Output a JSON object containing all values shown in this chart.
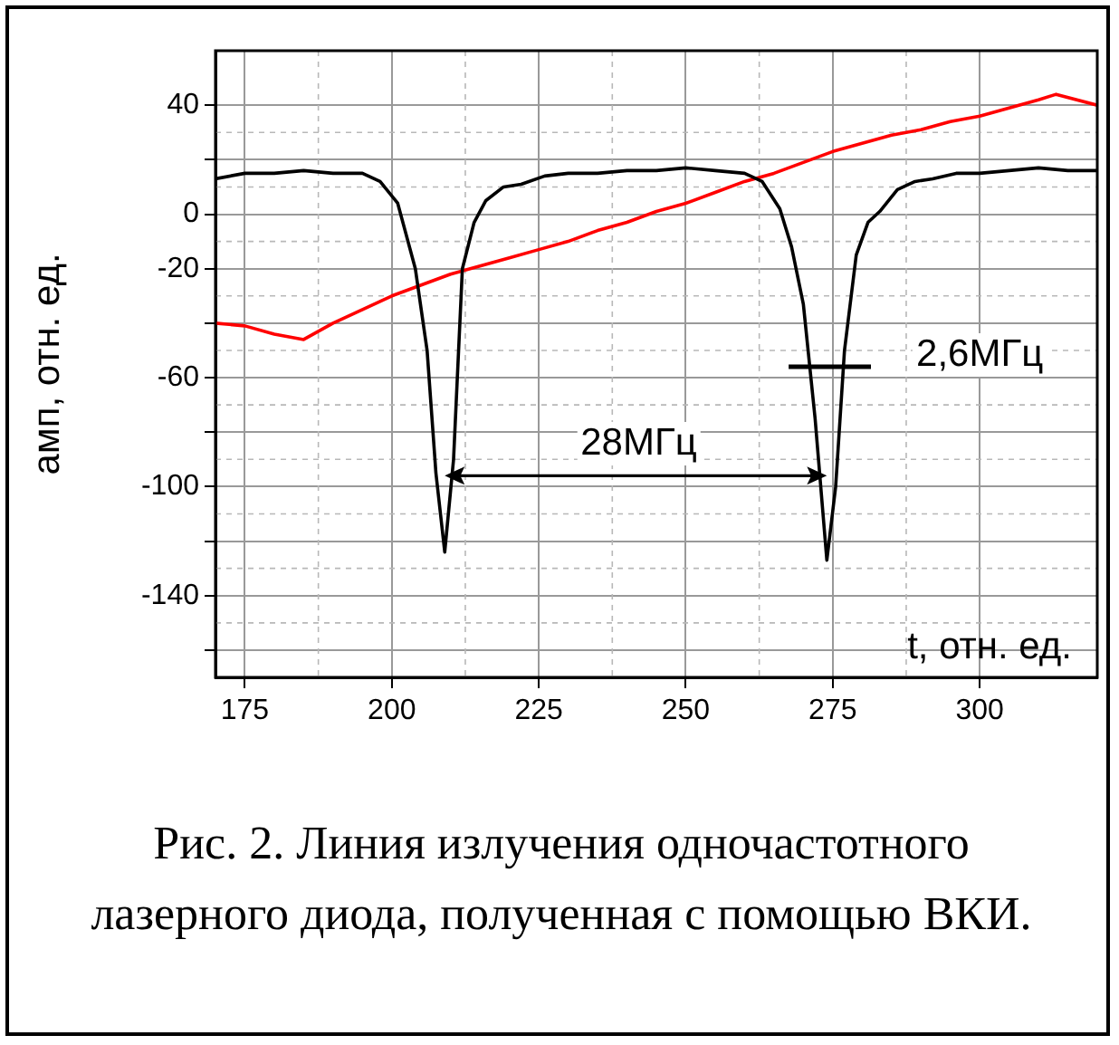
{
  "chart_data": {
    "type": "line",
    "xlabel": "t, отн. ед.",
    "ylabel": "амп, отн. ед.",
    "xlim": [
      170,
      320
    ],
    "xticks": [
      175,
      200,
      225,
      250,
      275,
      300
    ],
    "ylim": [
      -170,
      60
    ],
    "yticks": [
      {
        "value": -160,
        "label": null
      },
      -140,
      {
        "value": -120,
        "label": null
      },
      -100,
      {
        "value": -80,
        "label": null
      },
      -60,
      {
        "value": -40,
        "label": null
      },
      -20,
      0,
      {
        "value": 20,
        "label": null
      },
      40
    ],
    "grid": true,
    "legend": false,
    "marker": "none",
    "line_style": "solid",
    "series": [
      {
        "color": "#000000",
        "x": [
          170,
          175,
          180,
          185,
          190,
          195,
          198,
          201,
          204,
          206,
          207.5,
          209,
          210.5,
          212,
          214,
          216,
          219,
          222,
          226,
          230,
          235,
          240,
          245,
          250,
          255,
          260,
          263,
          266,
          268,
          270,
          272,
          274,
          275.5,
          277,
          279,
          281,
          283,
          286,
          289,
          292,
          296,
          300,
          305,
          310,
          315,
          320
        ],
        "values": [
          13,
          15,
          15,
          16,
          15,
          15,
          12,
          4,
          -20,
          -50,
          -95,
          -124,
          -90,
          -20,
          -3,
          5,
          10,
          11,
          14,
          15,
          15,
          16,
          16,
          17,
          16,
          15,
          12,
          2,
          -12,
          -33,
          -75,
          -127,
          -100,
          -50,
          -15,
          -3,
          1,
          9,
          12,
          13,
          15,
          15,
          16,
          17,
          16,
          16
        ]
      },
      {
        "color": "#ff0000",
        "x": [
          170,
          175,
          180,
          185,
          190,
          195,
          200,
          205,
          210,
          215,
          220,
          225,
          230,
          235,
          240,
          245,
          250,
          255,
          260,
          265,
          270,
          275,
          280,
          285,
          290,
          295,
          300,
          305,
          310,
          313,
          320
        ],
        "values": [
          -40,
          -41,
          -44,
          -46,
          -40,
          -35,
          -30,
          -26,
          -22,
          -19,
          -16,
          -13,
          -10,
          -6,
          -3,
          1,
          4,
          8,
          12,
          15,
          19,
          23,
          26,
          29,
          31,
          34,
          36,
          39,
          42,
          44,
          40
        ]
      }
    ],
    "annotations": [
      "28МГц",
      "2,6МГц",
      "Рис. 2. Линия излучения одночастотного лазерного диода, полученная с помощью ВКИ."
    ]
  }
}
